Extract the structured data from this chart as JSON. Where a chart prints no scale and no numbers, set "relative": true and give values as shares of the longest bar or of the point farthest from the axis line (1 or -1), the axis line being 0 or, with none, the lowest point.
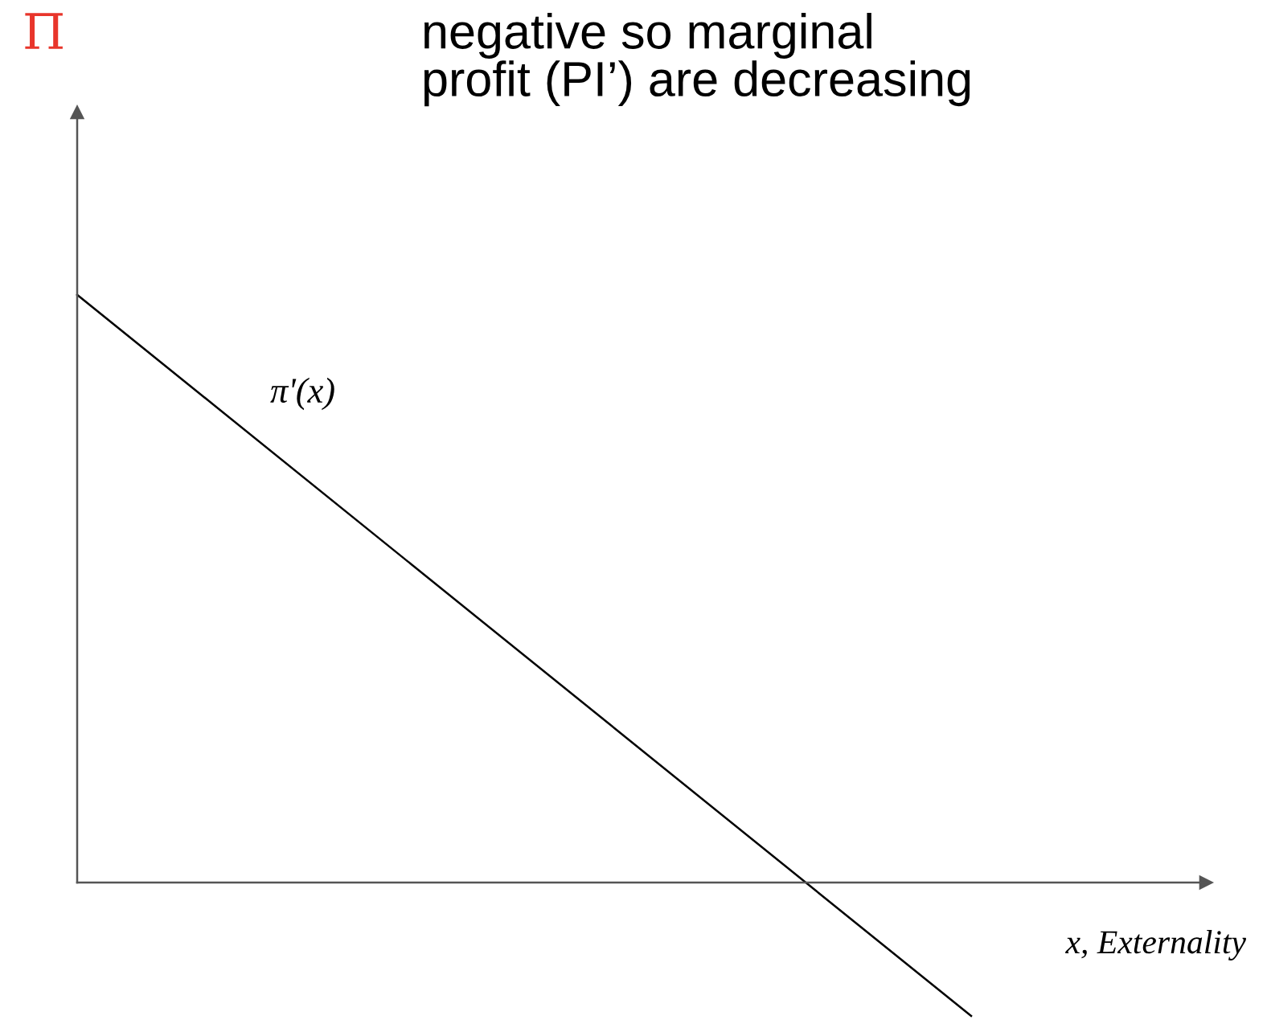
{
  "chart_data": {
    "type": "line",
    "relative": true,
    "title": "negative so marginal\nprofit (PI’) are decreasing",
    "xlabel": "x, Externality",
    "annotations": [
      "Π",
      "π'(x)"
    ],
    "categories": [
      null,
      null
    ],
    "series": [
      {
        "color": "#000000",
        "values": [
          1,
          -0.227
        ]
      }
    ]
  }
}
